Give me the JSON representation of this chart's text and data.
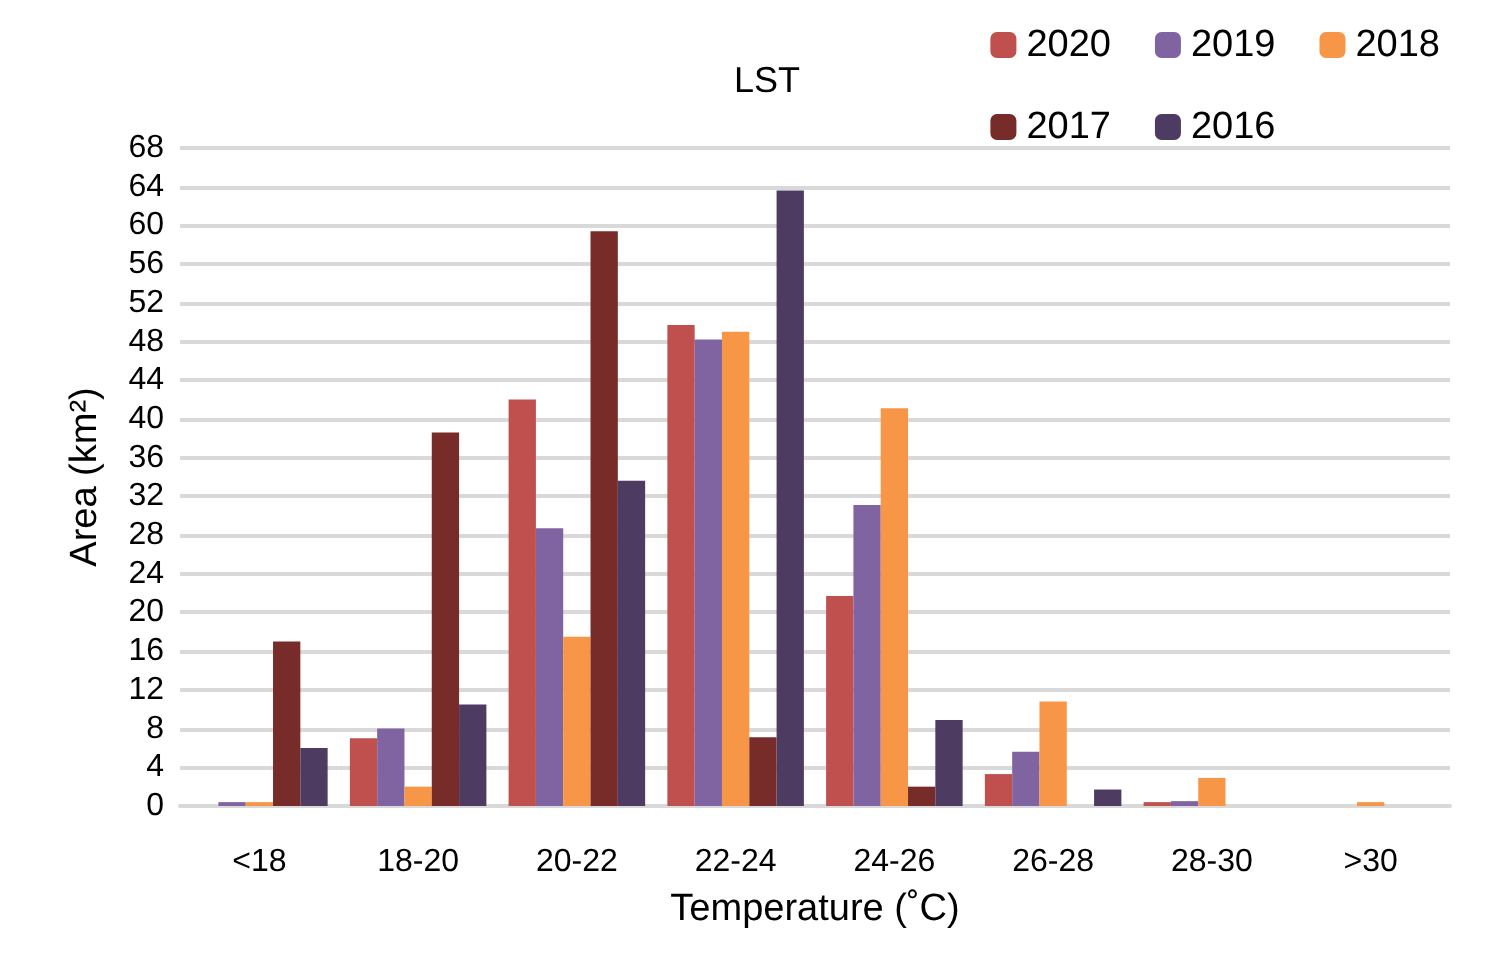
{
  "chart_data": {
    "type": "bar",
    "title": "LST",
    "xlabel": "Temperature (˚C)",
    "ylabel": "Area (km²)",
    "categories": [
      "<18",
      "18-20",
      "20-22",
      "22-24",
      "24-26",
      "26-28",
      "28-30",
      ">30"
    ],
    "series": [
      {
        "name": "2020",
        "color": "#c0504d",
        "values": [
          0,
          7,
          42,
          49.7,
          21.7,
          3.3,
          0.4,
          0
        ]
      },
      {
        "name": "2019",
        "color": "#8064a2",
        "values": [
          0.4,
          8,
          28.7,
          48.2,
          31.1,
          5.6,
          0.5,
          0
        ]
      },
      {
        "name": "2018",
        "color": "#f79646",
        "values": [
          0.4,
          2,
          17.5,
          49,
          41.1,
          10.8,
          2.9,
          0.4
        ]
      },
      {
        "name": "2017",
        "color": "#772c2a",
        "values": [
          17,
          38.6,
          59.4,
          7.1,
          2,
          0,
          0,
          0
        ]
      },
      {
        "name": "2016",
        "color": "#4d3b62",
        "values": [
          6,
          10.5,
          33.6,
          63.6,
          8.9,
          1.7,
          0,
          0
        ]
      }
    ],
    "ylim": [
      0,
      68
    ],
    "yticks": [
      0,
      4,
      8,
      12,
      16,
      20,
      24,
      28,
      32,
      36,
      40,
      44,
      48,
      52,
      56,
      60,
      64,
      68
    ],
    "grid": "y",
    "legend": "top right"
  }
}
